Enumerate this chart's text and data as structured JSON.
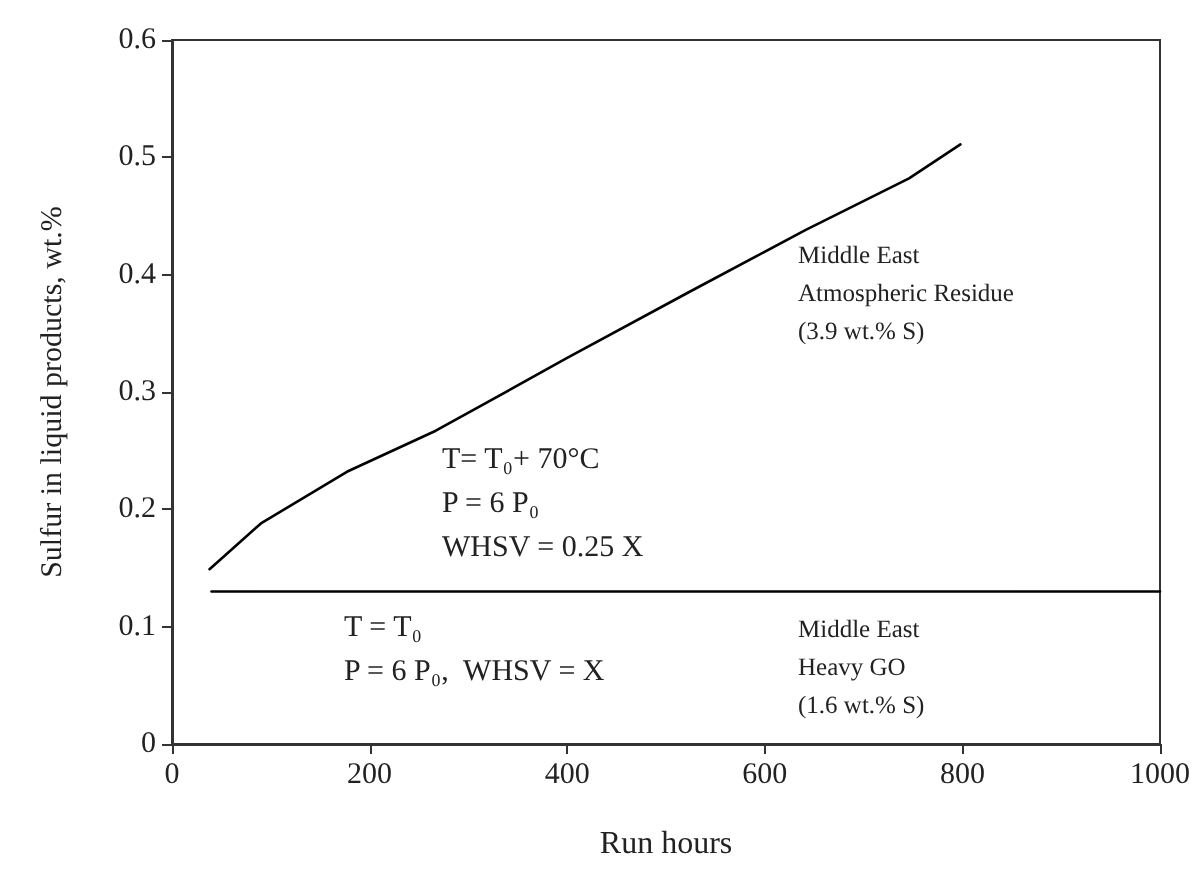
{
  "chart_data": {
    "type": "line",
    "xlabel": "Run hours",
    "ylabel": "Sulfur in liquid products, wt.%",
    "xlim": [
      0,
      1000
    ],
    "xticks": [
      0,
      200,
      400,
      600,
      800,
      1000
    ],
    "ylim": [
      0,
      0.6
    ],
    "yticks": [
      0,
      0.1,
      0.2,
      0.3,
      0.4,
      0.5,
      0.6
    ],
    "grid": false,
    "marker": "none",
    "line_style": "solid",
    "series": [
      {
        "color": "#000000",
        "x": [
          38,
          90,
          177,
          267,
          400,
          523,
          641,
          746,
          798
        ],
        "values": [
          0.149,
          0.188,
          0.232,
          0.267,
          0.329,
          0.385,
          0.438,
          0.482,
          0.511
        ]
      },
      {
        "color": "#000000",
        "x": [
          40,
          1000
        ],
        "values": [
          0.13,
          0.13
        ]
      }
    ],
    "annotations": [
      "Middle East\nAtmospheric Residue\n(3.9 wt.% S)",
      "T= T₀+ 70°C\nP = 6 P₀\nWHSV = 0.25 X",
      "T = T₀\nP = 6 P₀,  WHSV = X",
      "Middle East\nHeavy GO\n(1.6 wt.% S)"
    ]
  }
}
